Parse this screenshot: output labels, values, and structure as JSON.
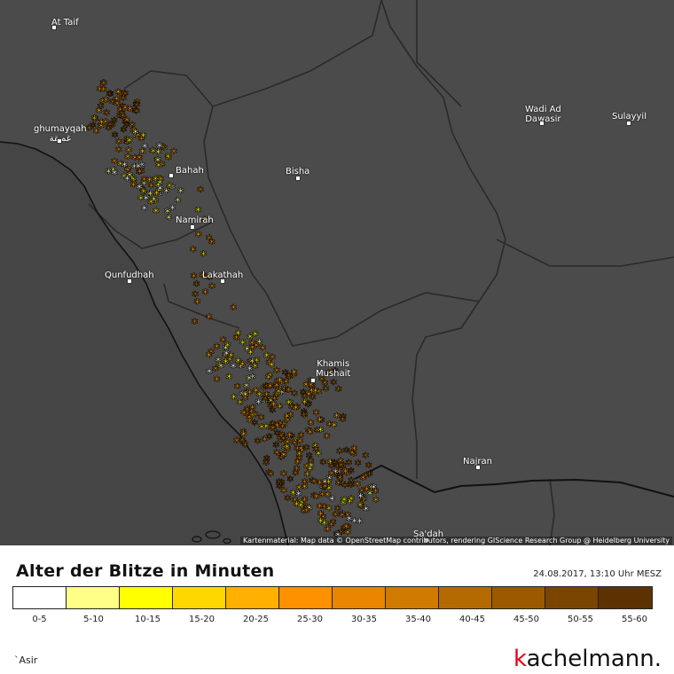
{
  "map": {
    "attribution": "Kartenmaterial: Map data © OpenStreetMap contributors, rendering GIScience Research Group @ Heidelberg University",
    "colors": {
      "background": "#4b4b4b",
      "coast": "#111111",
      "border": "#2a2a2a",
      "region": "#3a3a3a"
    },
    "cities": [
      {
        "name": "At Taif"
      },
      {
        "name": "ghumayqah\nغميقة"
      },
      {
        "name": "Bahah"
      },
      {
        "name": "Namirah"
      },
      {
        "name": "Bisha"
      },
      {
        "name": "Qunfudhah"
      },
      {
        "name": "Lakathah"
      },
      {
        "name": "Wadi Ad\nDawasir"
      },
      {
        "name": "Sulayyil"
      },
      {
        "name": "Khamis\nMushait"
      },
      {
        "name": "Najran"
      },
      {
        "name": "Sa'dah"
      }
    ]
  },
  "legend": {
    "title": "Alter der Blitze in Minuten",
    "timestamp": "24.08.2017, 13:10 Uhr MESZ",
    "classes": [
      {
        "label": "0-5",
        "color": "#ffffff"
      },
      {
        "label": "5-10",
        "color": "#ffff88"
      },
      {
        "label": "10-15",
        "color": "#ffff00"
      },
      {
        "label": "15-20",
        "color": "#ffd700"
      },
      {
        "label": "20-25",
        "color": "#ffb000"
      },
      {
        "label": "25-30",
        "color": "#ff9000"
      },
      {
        "label": "30-35",
        "color": "#ea8500"
      },
      {
        "label": "35-40",
        "color": "#d07a00"
      },
      {
        "label": "40-45",
        "color": "#b56a00"
      },
      {
        "label": "45-50",
        "color": "#9c5a00"
      },
      {
        "label": "50-55",
        "color": "#7a4500"
      },
      {
        "label": "55-60",
        "color": "#5c3300"
      }
    ]
  },
  "region": "`Asir",
  "brand": {
    "first": "k",
    "rest": "achelmann."
  }
}
